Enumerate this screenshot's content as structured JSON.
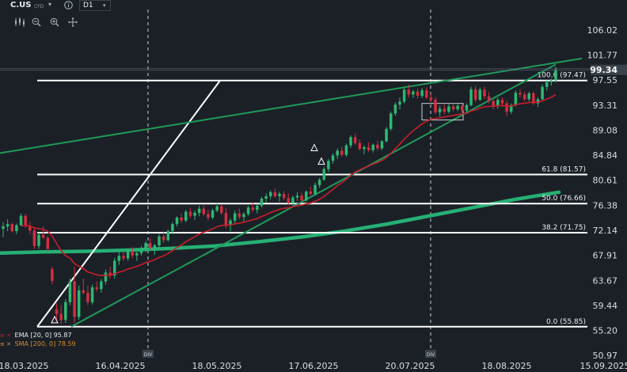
{
  "toolbar": {
    "symbol": "C.US",
    "symbol_badge": "CFD",
    "timeframe": "D1",
    "icons": [
      "chart-type-icon",
      "zoom-out-icon",
      "zoom-in-icon",
      "crosshair-icon",
      "info-icon",
      "dropdown-icon"
    ]
  },
  "legend": {
    "ema": "EMA [20, 0] 95.87",
    "sma": "SMA [200, 0] 78.59"
  },
  "colors": {
    "background": "#1b2027",
    "bull": "#2eb872",
    "bear": "#d12f3f",
    "ema": "#c81e2a",
    "sma": "#26b075",
    "channel": "#1f9a5a",
    "fib": "#ffffff",
    "grid_text": "#d7dde3"
  },
  "chart_data": {
    "type": "candlestick",
    "y_ticks": [
      "106.02",
      "101.77",
      "97.55",
      "93.31",
      "89.08",
      "84.84",
      "80.61",
      "76.38",
      "72.14",
      "67.91",
      "63.67",
      "59.44",
      "55.20",
      "50.97"
    ],
    "ylim": [
      50.97,
      106.02
    ],
    "x_ticks": [
      "18.03.2025",
      "16.04.2025",
      "18.05.2025",
      "17.06.2025",
      "20.07.2025",
      "18.08.2025",
      "15.09.2025"
    ],
    "current_price": "99.34",
    "dividend_marks": [
      {
        "label": "DIV",
        "date": "2025-04-17"
      },
      {
        "label": "DIV",
        "date": "2025-07-21"
      }
    ],
    "fibonacci_levels": [
      {
        "label": "100.0 (97.47)",
        "value": 97.47
      },
      {
        "label": "61.8 (81.57)",
        "value": 81.57
      },
      {
        "label": "50.0 (76.66)",
        "value": 76.66
      },
      {
        "label": "38.2 (71.75)",
        "value": 71.75
      },
      {
        "label": "0.0 (55.85)",
        "value": 55.85
      }
    ],
    "series": [
      {
        "name": "EMA [20, 0]",
        "last": 95.87
      },
      {
        "name": "SMA [200, 0]",
        "last": 78.59
      }
    ],
    "candles": [
      [
        72.4,
        73.5,
        71.0,
        72.8
      ],
      [
        72.8,
        74.0,
        72.0,
        73.2
      ],
      [
        73.2,
        73.5,
        71.8,
        72.0
      ],
      [
        72.0,
        73.3,
        71.5,
        73.0
      ],
      [
        73.0,
        75.0,
        72.8,
        74.6
      ],
      [
        74.6,
        74.9,
        72.5,
        72.9
      ],
      [
        72.9,
        73.6,
        71.5,
        72.1
      ],
      [
        72.1,
        72.6,
        69.0,
        69.5
      ],
      [
        69.5,
        71.8,
        69.0,
        71.4
      ],
      [
        71.4,
        72.8,
        70.6,
        70.9
      ],
      [
        70.9,
        71.2,
        68.6,
        69.0
      ],
      [
        65.6,
        66.0,
        63.0,
        63.6
      ],
      [
        58.8,
        59.8,
        57.0,
        58.0
      ],
      [
        58.0,
        59.5,
        56.3,
        57.0
      ],
      [
        57.0,
        60.5,
        56.5,
        60.0
      ],
      [
        60.0,
        64.0,
        59.5,
        63.5
      ],
      [
        63.5,
        66.0,
        56.5,
        57.5
      ],
      [
        57.5,
        62.8,
        57.0,
        62.0
      ],
      [
        62.0,
        64.0,
        61.3,
        61.6
      ],
      [
        61.6,
        62.8,
        59.5,
        60.0
      ],
      [
        60.0,
        63.0,
        59.6,
        62.5
      ],
      [
        62.5,
        63.5,
        61.8,
        62.2
      ],
      [
        62.2,
        63.9,
        61.6,
        63.5
      ],
      [
        63.5,
        65.5,
        63.0,
        65.0
      ],
      [
        65.0,
        66.0,
        64.0,
        64.5
      ],
      [
        64.5,
        67.5,
        64.0,
        67.0
      ],
      [
        67.0,
        68.5,
        66.3,
        67.8
      ],
      [
        67.8,
        68.6,
        67.0,
        67.4
      ],
      [
        67.4,
        69.0,
        67.0,
        68.6
      ],
      [
        68.6,
        69.3,
        67.5,
        67.9
      ],
      [
        67.9,
        68.5,
        67.0,
        68.3
      ],
      [
        68.3,
        69.5,
        67.9,
        69.0
      ],
      [
        69.0,
        70.3,
        68.5,
        70.0
      ],
      [
        70.0,
        70.8,
        68.8,
        69.2
      ],
      [
        69.2,
        69.9,
        68.0,
        69.6
      ],
      [
        69.6,
        71.5,
        69.0,
        71.1
      ],
      [
        71.1,
        71.8,
        70.0,
        70.5
      ],
      [
        70.5,
        72.3,
        70.2,
        72.0
      ],
      [
        72.0,
        73.5,
        71.5,
        73.2
      ],
      [
        73.2,
        74.5,
        72.8,
        74.3
      ],
      [
        74.3,
        75.0,
        73.4,
        73.8
      ],
      [
        73.8,
        75.6,
        73.5,
        75.3
      ],
      [
        75.3,
        75.9,
        74.2,
        74.6
      ],
      [
        74.6,
        75.5,
        73.9,
        75.1
      ],
      [
        75.1,
        76.3,
        74.5,
        75.8
      ],
      [
        75.8,
        76.4,
        74.6,
        74.9
      ],
      [
        74.9,
        75.6,
        73.8,
        74.3
      ],
      [
        74.3,
        75.8,
        74.0,
        75.5
      ],
      [
        75.5,
        76.7,
        75.2,
        76.2
      ],
      [
        76.2,
        76.5,
        74.8,
        75.1
      ],
      [
        75.1,
        75.9,
        72.5,
        73.0
      ],
      [
        73.0,
        74.2,
        72.0,
        73.8
      ],
      [
        73.8,
        75.5,
        73.2,
        75.0
      ],
      [
        75.0,
        75.8,
        74.0,
        74.4
      ],
      [
        74.4,
        75.2,
        73.6,
        74.9
      ],
      [
        74.9,
        76.3,
        74.6,
        76.0
      ],
      [
        76.0,
        76.9,
        75.2,
        75.6
      ],
      [
        75.6,
        76.6,
        75.0,
        76.3
      ],
      [
        76.3,
        77.8,
        76.0,
        77.5
      ],
      [
        77.5,
        78.4,
        76.8,
        77.9
      ],
      [
        77.9,
        78.9,
        77.4,
        78.6
      ],
      [
        78.6,
        79.2,
        77.6,
        77.9
      ],
      [
        77.9,
        78.7,
        77.0,
        78.3
      ],
      [
        78.3,
        78.8,
        77.2,
        77.6
      ],
      [
        77.6,
        78.4,
        76.4,
        76.8
      ],
      [
        76.8,
        78.0,
        76.3,
        77.7
      ],
      [
        77.7,
        78.6,
        77.1,
        78.0
      ],
      [
        78.0,
        78.5,
        76.9,
        77.2
      ],
      [
        77.2,
        78.9,
        77.0,
        78.7
      ],
      [
        78.7,
        79.5,
        78.0,
        78.3
      ],
      [
        78.3,
        80.2,
        78.0,
        79.8
      ],
      [
        79.8,
        81.0,
        79.3,
        80.7
      ],
      [
        80.7,
        82.8,
        80.5,
        82.5
      ],
      [
        82.5,
        84.2,
        82.0,
        83.9
      ],
      [
        83.9,
        85.2,
        83.4,
        84.8
      ],
      [
        84.8,
        86.0,
        84.2,
        85.6
      ],
      [
        85.6,
        86.3,
        84.6,
        84.9
      ],
      [
        84.9,
        86.8,
        84.6,
        86.5
      ],
      [
        86.5,
        88.2,
        86.1,
        87.9
      ],
      [
        87.9,
        88.5,
        86.6,
        86.9
      ],
      [
        86.9,
        87.5,
        85.6,
        85.9
      ],
      [
        85.9,
        86.5,
        85.0,
        86.2
      ],
      [
        86.2,
        87.0,
        85.4,
        85.7
      ],
      [
        85.7,
        86.8,
        85.3,
        86.6
      ],
      [
        86.6,
        87.2,
        85.6,
        86.0
      ],
      [
        86.0,
        87.4,
        85.7,
        87.2
      ],
      [
        87.2,
        89.6,
        87.0,
        89.3
      ],
      [
        89.3,
        92.2,
        89.0,
        91.9
      ],
      [
        91.9,
        93.8,
        91.5,
        93.4
      ],
      [
        93.4,
        94.6,
        92.6,
        93.9
      ],
      [
        93.9,
        96.2,
        93.6,
        95.9
      ],
      [
        95.9,
        96.8,
        94.6,
        95.1
      ],
      [
        95.1,
        95.9,
        94.5,
        95.6
      ],
      [
        95.6,
        96.1,
        94.4,
        94.9
      ],
      [
        94.9,
        96.2,
        94.5,
        95.8
      ],
      [
        95.8,
        96.3,
        94.3,
        94.6
      ],
      [
        94.6,
        95.4,
        93.8,
        94.2
      ],
      [
        94.2,
        94.6,
        91.8,
        92.1
      ],
      [
        92.1,
        93.2,
        91.4,
        92.7
      ],
      [
        92.7,
        93.4,
        91.8,
        92.2
      ],
      [
        92.2,
        93.5,
        91.9,
        93.1
      ],
      [
        93.1,
        93.6,
        92.2,
        92.6
      ],
      [
        92.6,
        93.5,
        92.3,
        93.2
      ],
      [
        93.2,
        93.4,
        92.0,
        92.4
      ],
      [
        92.4,
        93.6,
        92.1,
        93.3
      ],
      [
        93.3,
        96.4,
        93.1,
        96.0
      ],
      [
        96.0,
        96.5,
        93.8,
        94.2
      ],
      [
        94.2,
        96.3,
        94.0,
        95.9
      ],
      [
        95.9,
        96.4,
        94.4,
        94.8
      ],
      [
        94.8,
        95.5,
        93.6,
        94.0
      ],
      [
        94.0,
        94.3,
        92.6,
        93.2
      ],
      [
        93.2,
        94.6,
        92.7,
        94.2
      ],
      [
        94.2,
        94.6,
        93.0,
        93.6
      ],
      [
        93.6,
        94.0,
        91.4,
        92.2
      ],
      [
        92.2,
        93.6,
        91.8,
        93.3
      ],
      [
        93.3,
        95.8,
        93.1,
        95.4
      ],
      [
        95.4,
        96.0,
        94.6,
        95.1
      ],
      [
        95.1,
        95.6,
        94.0,
        94.3
      ],
      [
        94.3,
        95.6,
        94.0,
        95.3
      ],
      [
        95.3,
        95.6,
        93.3,
        93.6
      ],
      [
        93.6,
        94.6,
        93.0,
        94.3
      ],
      [
        94.3,
        96.8,
        94.1,
        96.4
      ],
      [
        96.4,
        97.5,
        95.8,
        97.2
      ],
      [
        97.2,
        97.8,
        96.6,
        97.5
      ],
      [
        97.5,
        99.8,
        97.2,
        99.34
      ]
    ]
  }
}
